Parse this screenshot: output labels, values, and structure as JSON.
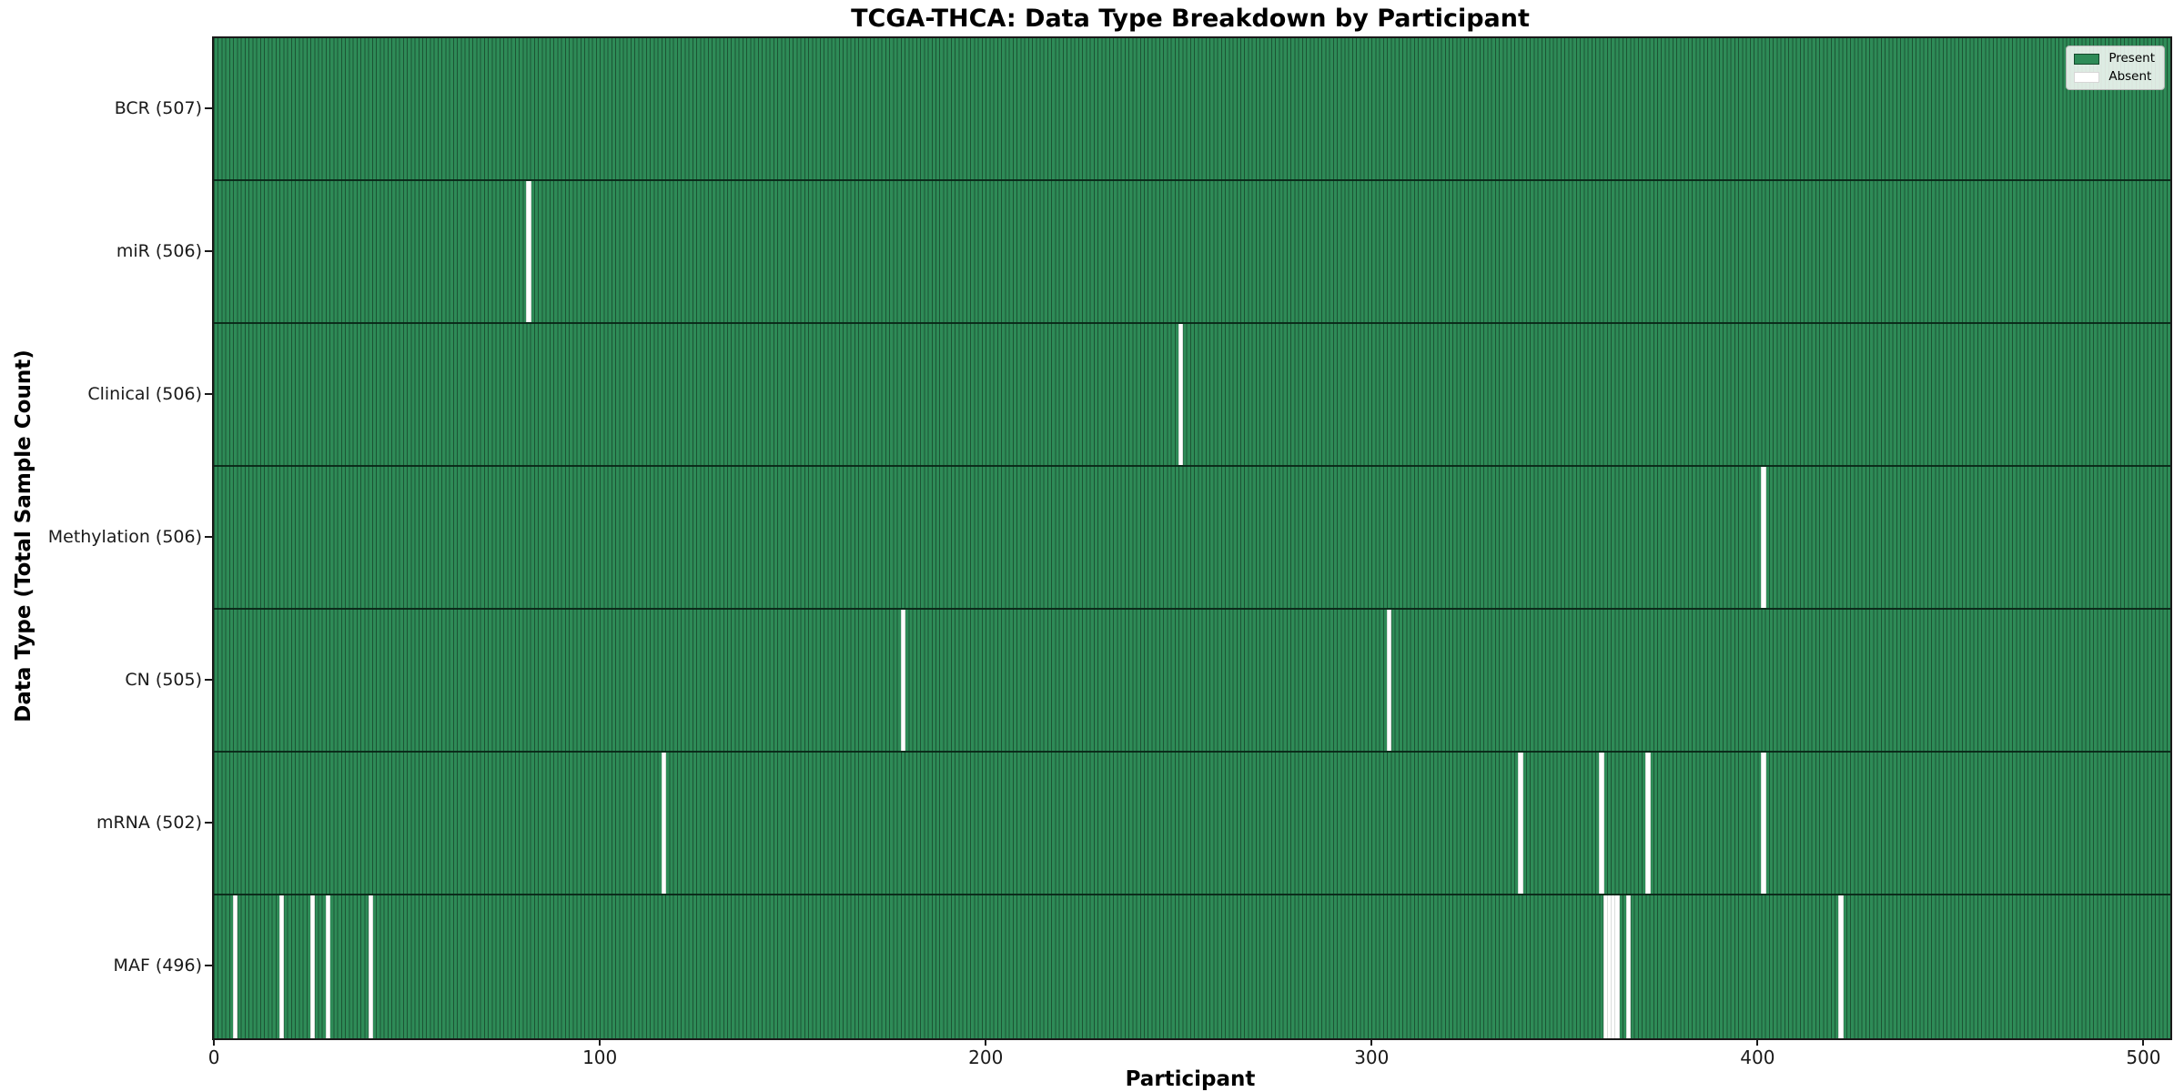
{
  "title": "TCGA-THCA: Data Type Breakdown by Participant",
  "chart_data": {
    "type": "heatmap",
    "title": "TCGA-THCA: Data Type Breakdown by Participant",
    "xlabel": "Participant",
    "ylabel": "Data Type (Total Sample Count)",
    "x_ticks": [
      0,
      100,
      200,
      300,
      400,
      500
    ],
    "x_range": [
      -0.5,
      506.5
    ],
    "n_participants": 507,
    "grid": false,
    "legend_position": "upper right",
    "legend": [
      {
        "label": "Present",
        "color": "#2e8b57"
      },
      {
        "label": "Absent",
        "color": "#ffffff"
      }
    ],
    "rows": [
      {
        "name": "BCR",
        "label": "BCR (507)",
        "total": 507,
        "absent_participants": []
      },
      {
        "name": "miR",
        "label": "miR (506)",
        "total": 506,
        "absent_participants": [
          81
        ]
      },
      {
        "name": "Clinical",
        "label": "Clinical (506)",
        "total": 506,
        "absent_participants": [
          250
        ]
      },
      {
        "name": "Methylation",
        "label": "Methylation (506)",
        "total": 506,
        "absent_participants": [
          401
        ]
      },
      {
        "name": "CN",
        "label": "CN (505)",
        "total": 505,
        "absent_participants": [
          178,
          304
        ]
      },
      {
        "name": "mRNA",
        "label": "mRNA (502)",
        "total": 502,
        "absent_participants": [
          116,
          338,
          359,
          371,
          401
        ]
      },
      {
        "name": "MAF",
        "label": "MAF (496)",
        "total": 496,
        "absent_participants": [
          5,
          17,
          25,
          29,
          40,
          360,
          361,
          362,
          363,
          366,
          421
        ]
      }
    ],
    "colors": {
      "present_fill": "#2e8b57",
      "present_edge": "#1c5434",
      "absent": "#ffffff",
      "row_divider": "#092416",
      "spine": "#1a1a1a"
    }
  }
}
